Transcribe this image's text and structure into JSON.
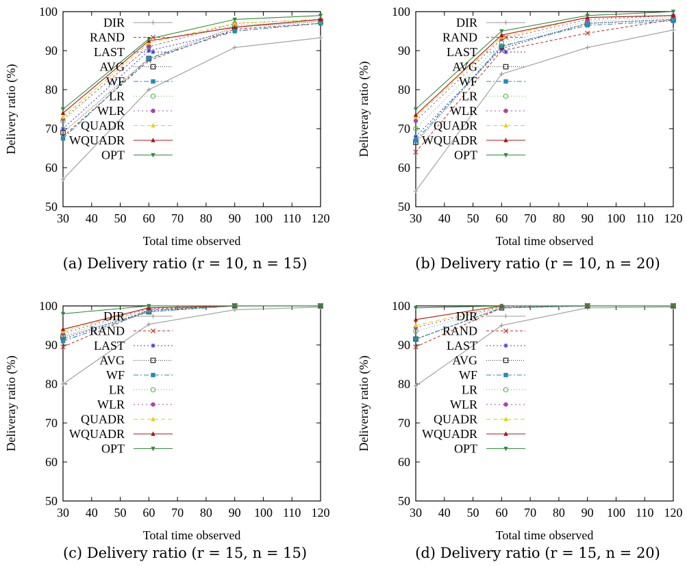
{
  "legend_order": [
    "DIR",
    "RAND",
    "LAST",
    "AVG",
    "WF",
    "LR",
    "WLR",
    "QUADR",
    "WQUADR",
    "OPT"
  ],
  "series_styles": {
    "DIR": {
      "color": "#9a9a9a",
      "dash": "",
      "marker": "plus"
    },
    "RAND": {
      "color": "#c0392b",
      "dash": "4,3",
      "marker": "x"
    },
    "LAST": {
      "color": "#3b3bd6",
      "dash": "2,3",
      "marker": "star"
    },
    "AVG": {
      "color": "#333333",
      "dash": "1,2",
      "marker": "square-open"
    },
    "WF": {
      "color": "#1f8fb3",
      "dash": "7,3,2,3",
      "marker": "square"
    },
    "LR": {
      "color": "#5cb85c",
      "dash": "1,3",
      "marker": "circle-open"
    },
    "WLR": {
      "color": "#b040b0",
      "dash": "2,4",
      "marker": "circle"
    },
    "QUADR": {
      "color": "#e6d200",
      "dash": "6,4",
      "marker": "triangle-up"
    },
    "WQUADR": {
      "color": "#b01010",
      "dash": "",
      "marker": "triangle-up"
    },
    "OPT": {
      "color": "#2e8b3a",
      "dash": "",
      "marker": "triangle-down"
    }
  },
  "chart_data": [
    {
      "type": "line",
      "caption": "(a) Delivery ratio (r = 10, n = 15)",
      "xlabel": "Total time observed",
      "ylabel": "Delivery ratio (%)",
      "xlim": [
        30,
        120
      ],
      "ylim": [
        50,
        100
      ],
      "xticks": [
        30,
        40,
        50,
        60,
        70,
        80,
        90,
        100,
        110,
        120
      ],
      "yticks": [
        50,
        60,
        70,
        80,
        90,
        100
      ],
      "legend_position": "top-left",
      "x": [
        30,
        60,
        90,
        120
      ],
      "series": [
        {
          "name": "DIR",
          "values": [
            57,
            80,
            90.8,
            93.3
          ]
        },
        {
          "name": "RAND",
          "values": [
            68,
            87.5,
            95.5,
            97
          ]
        },
        {
          "name": "LAST",
          "values": [
            70,
            90,
            95,
            97
          ]
        },
        {
          "name": "AVG",
          "values": [
            69,
            88,
            96,
            97.5
          ]
        },
        {
          "name": "WF",
          "values": [
            67.5,
            88,
            95,
            97
          ]
        },
        {
          "name": "LR",
          "values": [
            72,
            91,
            96.5,
            97.5
          ]
        },
        {
          "name": "WLR",
          "values": [
            72.5,
            91,
            97,
            98
          ]
        },
        {
          "name": "QUADR",
          "values": [
            73,
            92,
            97,
            98
          ]
        },
        {
          "name": "WQUADR",
          "values": [
            74,
            92.5,
            96,
            98
          ]
        },
        {
          "name": "OPT",
          "values": [
            75,
            93,
            98,
            99
          ]
        }
      ]
    },
    {
      "type": "line",
      "caption": "(b) Delivery ratio (r = 10, n = 20)",
      "xlabel": "Total time observed",
      "ylabel": "Deliveray ratio (%)",
      "xlim": [
        30,
        120
      ],
      "ylim": [
        50,
        100
      ],
      "xticks": [
        30,
        40,
        50,
        60,
        70,
        80,
        90,
        100,
        110,
        120
      ],
      "yticks": [
        50,
        60,
        70,
        80,
        90,
        100
      ],
      "legend_position": "top-left",
      "x": [
        30,
        60,
        90,
        120
      ],
      "series": [
        {
          "name": "DIR",
          "values": [
            54,
            84,
            90.8,
            95.3
          ]
        },
        {
          "name": "RAND",
          "values": [
            64,
            90,
            94.5,
            98
          ]
        },
        {
          "name": "LAST",
          "values": [
            68,
            90.5,
            97,
            98
          ]
        },
        {
          "name": "AVG",
          "values": [
            66.5,
            91,
            97,
            98
          ]
        },
        {
          "name": "WF",
          "values": [
            67,
            91.2,
            96.5,
            97.6
          ]
        },
        {
          "name": "LR",
          "values": [
            70,
            92,
            97.5,
            98.5
          ]
        },
        {
          "name": "WLR",
          "values": [
            72,
            93,
            98,
            99
          ]
        },
        {
          "name": "QUADR",
          "values": [
            73,
            93.5,
            98.5,
            99
          ]
        },
        {
          "name": "WQUADR",
          "values": [
            73.5,
            94,
            98.5,
            99
          ]
        },
        {
          "name": "OPT",
          "values": [
            75,
            95,
            99,
            100
          ]
        }
      ]
    },
    {
      "type": "line",
      "caption": "(c) Delivery ratio (r = 15, n = 15)",
      "xlabel": "Total time observed",
      "ylabel": "Deliveray ratio (%)",
      "xlim": [
        30,
        120
      ],
      "ylim": [
        50,
        100
      ],
      "xticks": [
        30,
        40,
        50,
        60,
        70,
        80,
        90,
        100,
        110,
        120
      ],
      "yticks": [
        50,
        60,
        70,
        80,
        90,
        100
      ],
      "legend_position": "top-left",
      "x": [
        30,
        60,
        90,
        120
      ],
      "series": [
        {
          "name": "DIR",
          "values": [
            80,
            95.3,
            99,
            99.7
          ]
        },
        {
          "name": "RAND",
          "values": [
            89.5,
            99,
            100,
            100
          ]
        },
        {
          "name": "LAST",
          "values": [
            91.5,
            98.8,
            100,
            100
          ]
        },
        {
          "name": "AVG",
          "values": [
            92,
            98.5,
            100,
            100
          ]
        },
        {
          "name": "WF",
          "values": [
            91,
            98.5,
            100,
            100
          ]
        },
        {
          "name": "LR",
          "values": [
            92.5,
            99,
            100,
            100
          ]
        },
        {
          "name": "WLR",
          "values": [
            93,
            99.3,
            100,
            100
          ]
        },
        {
          "name": "QUADR",
          "values": [
            93.5,
            99.5,
            100,
            100
          ]
        },
        {
          "name": "WQUADR",
          "values": [
            94,
            99.5,
            100,
            100
          ]
        },
        {
          "name": "OPT",
          "values": [
            98,
            100,
            100,
            100
          ]
        }
      ]
    },
    {
      "type": "line",
      "caption": "(d) Delivery ratio (r = 15, n = 20)",
      "xlabel": "Total time observed",
      "ylabel": "Deliveray ratio (%)",
      "xlim": [
        30,
        120
      ],
      "ylim": [
        50,
        100
      ],
      "xticks": [
        30,
        40,
        50,
        60,
        70,
        80,
        90,
        100,
        110,
        120
      ],
      "yticks": [
        50,
        60,
        70,
        80,
        90,
        100
      ],
      "legend_position": "top-left",
      "x": [
        30,
        60,
        90,
        120
      ],
      "series": [
        {
          "name": "DIR",
          "values": [
            79.5,
            95,
            99.5,
            99.7
          ]
        },
        {
          "name": "RAND",
          "values": [
            89.5,
            99.5,
            100,
            100
          ]
        },
        {
          "name": "LAST",
          "values": [
            91.5,
            99.5,
            100,
            100
          ]
        },
        {
          "name": "AVG",
          "values": [
            91.5,
            99.5,
            100,
            100
          ]
        },
        {
          "name": "WF",
          "values": [
            91.5,
            99.5,
            100,
            100
          ]
        },
        {
          "name": "LR",
          "values": [
            93.5,
            99.7,
            100,
            100
          ]
        },
        {
          "name": "WLR",
          "values": [
            94.5,
            99.8,
            100,
            100
          ]
        },
        {
          "name": "QUADR",
          "values": [
            95,
            100,
            100,
            100
          ]
        },
        {
          "name": "WQUADR",
          "values": [
            96.5,
            100,
            100,
            100
          ]
        },
        {
          "name": "OPT",
          "values": [
            99.5,
            100,
            100,
            100
          ]
        }
      ]
    }
  ]
}
